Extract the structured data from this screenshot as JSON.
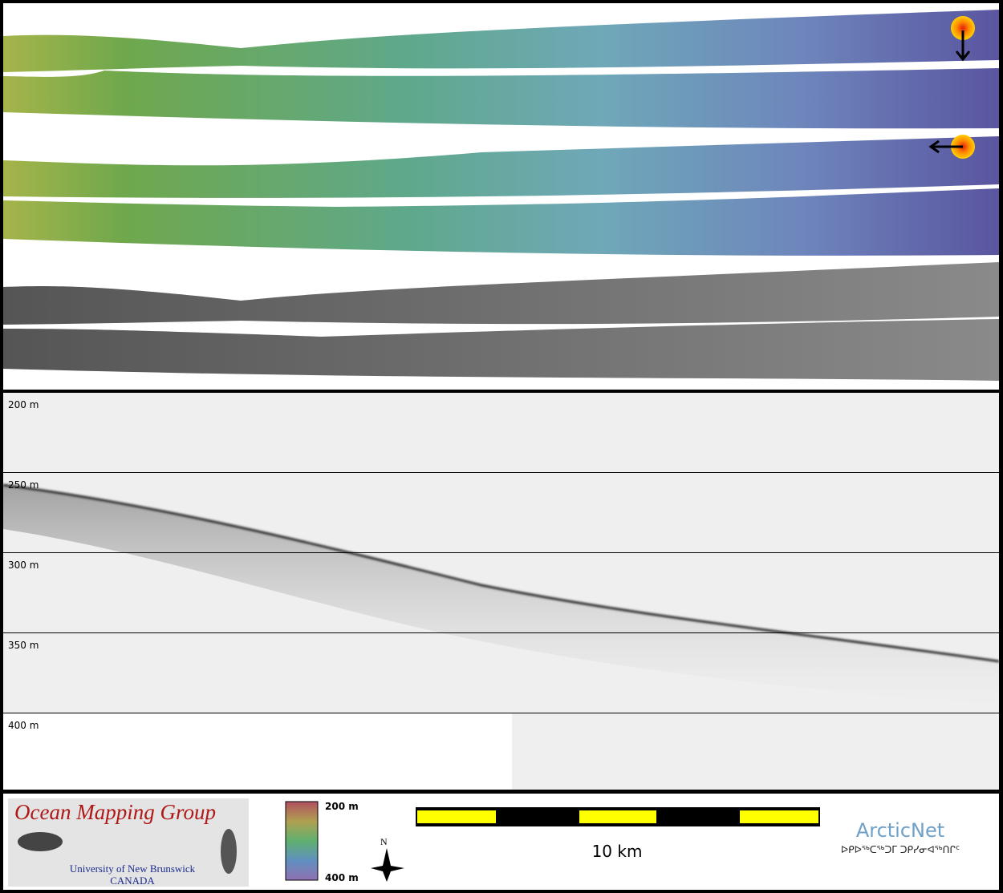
{
  "profile": {
    "depth_labels": [
      "200 m",
      "250 m",
      "300 m",
      "350 m",
      "400 m"
    ]
  },
  "legend": {
    "logo": {
      "title": "Ocean Mapping Group",
      "university": "University of New Brunswick",
      "country": "CANADA"
    },
    "colorbar": {
      "top_label": "200 m",
      "bottom_label": "400 m"
    },
    "compass": "N",
    "scale_bar": "10 km",
    "partner": {
      "name": "ArcticNet",
      "syllabics": "ᐅᑭᐅᖅᑕᖅᑐᒥ ᑐᑭᓯᓂᐊᖅᑎᒋᑦ"
    }
  }
}
